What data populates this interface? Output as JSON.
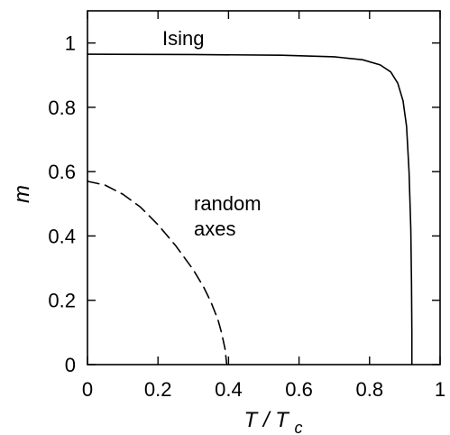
{
  "chart_data": {
    "type": "line",
    "xlim": [
      0,
      1
    ],
    "ylim": [
      0,
      1.1
    ],
    "grid": false,
    "legend": "none",
    "x_ticks": [
      0,
      0.2,
      0.4,
      0.6,
      0.8,
      1
    ],
    "x_tick_labels": [
      "0",
      "0.2",
      "0.4",
      "0.6",
      "0.8",
      "1"
    ],
    "y_ticks": [
      0,
      0.2,
      0.4,
      0.6,
      0.8,
      1
    ],
    "y_tick_labels": [
      "0",
      "0.2",
      "0.4",
      "0.6",
      "0.8",
      "1"
    ],
    "xlabel": {
      "main": "T",
      "sep": " / ",
      "sub_main": "T",
      "sub": "c"
    },
    "ylabel": "m",
    "annotations": [
      {
        "key": "ising",
        "lines": [
          "Ising"
        ]
      },
      {
        "key": "random",
        "lines": [
          "random",
          "axes"
        ]
      }
    ],
    "series": [
      {
        "style": "solid",
        "color": "#000000",
        "points": [
          [
            0.0,
            0.965
          ],
          [
            0.3,
            0.964
          ],
          [
            0.55,
            0.962
          ],
          [
            0.7,
            0.957
          ],
          [
            0.78,
            0.948
          ],
          [
            0.83,
            0.932
          ],
          [
            0.86,
            0.91
          ],
          [
            0.88,
            0.875
          ],
          [
            0.895,
            0.82
          ],
          [
            0.905,
            0.74
          ],
          [
            0.912,
            0.6
          ],
          [
            0.917,
            0.42
          ],
          [
            0.919,
            0.25
          ],
          [
            0.92,
            0.1
          ],
          [
            0.92,
            0.0
          ]
        ]
      },
      {
        "style": "dashed",
        "color": "#000000",
        "points": [
          [
            0.0,
            0.57
          ],
          [
            0.05,
            0.558
          ],
          [
            0.1,
            0.53
          ],
          [
            0.15,
            0.49
          ],
          [
            0.2,
            0.435
          ],
          [
            0.25,
            0.37
          ],
          [
            0.3,
            0.295
          ],
          [
            0.33,
            0.24
          ],
          [
            0.35,
            0.195
          ],
          [
            0.37,
            0.14
          ],
          [
            0.38,
            0.1
          ],
          [
            0.39,
            0.05
          ],
          [
            0.395,
            0.0
          ]
        ]
      }
    ]
  }
}
